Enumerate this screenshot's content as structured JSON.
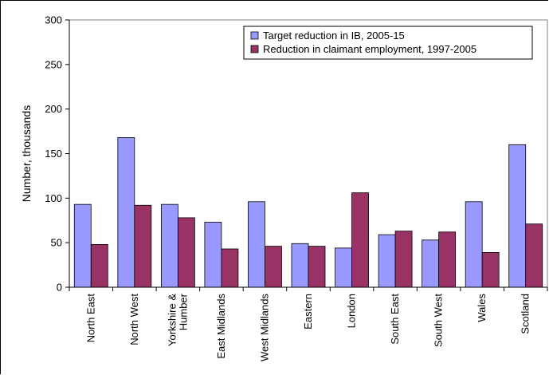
{
  "chart_data": {
    "type": "bar",
    "title": "",
    "xlabel": "",
    "ylabel": "Number, thousands",
    "ylim": [
      0,
      300
    ],
    "yticks": [
      0,
      50,
      100,
      150,
      200,
      250,
      300
    ],
    "grid": false,
    "legend_position": "top-right",
    "categories": [
      [
        "North East"
      ],
      [
        "North West"
      ],
      [
        "Yorkshire &",
        "Humber"
      ],
      [
        "East Midlands"
      ],
      [
        "West Midlands"
      ],
      [
        "Eastern"
      ],
      [
        "London"
      ],
      [
        "South East"
      ],
      [
        "South West"
      ],
      [
        "Wales"
      ],
      [
        "Scotland"
      ]
    ],
    "series": [
      {
        "name": "Target reduction in IB, 2005-15",
        "color": "#9999ff",
        "values": [
          93,
          168,
          93,
          73,
          96,
          49,
          44,
          59,
          53,
          96,
          160
        ]
      },
      {
        "name": "Reduction in claimant employment, 1997-2005",
        "color": "#993366",
        "values": [
          48,
          92,
          78,
          43,
          46,
          46,
          106,
          63,
          62,
          39,
          71
        ]
      }
    ]
  }
}
